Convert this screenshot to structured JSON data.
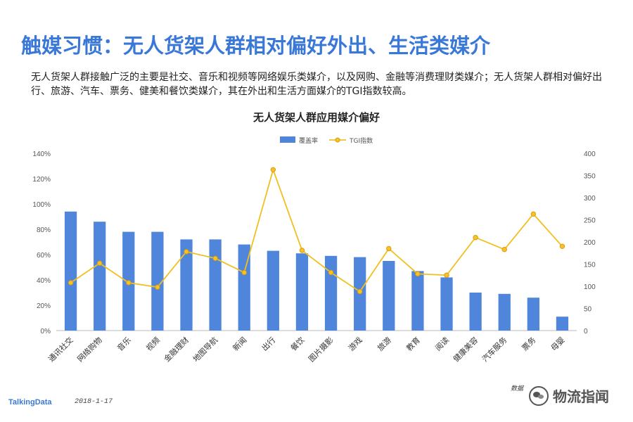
{
  "header": {
    "title": "触媒习惯：无人货架人群相对偏好外出、生活类媒介",
    "subtitle": "无人货架人群接触广泛的主要是社交、音乐和视频等网络娱乐类媒介，以及网购、金融等消费理财类媒介；无人货架人群相对偏好出行、旅游、汽车、票务、健美和餐饮类媒介，其在外出和生活方面媒介的TGI指数较高。"
  },
  "chart_data": {
    "type": "bar",
    "title": "无人货架人群应用媒介偏好",
    "categories": [
      "通讯社交",
      "网络购物",
      "音乐",
      "视频",
      "金融理财",
      "地图导航",
      "新闻",
      "出行",
      "餐饮",
      "图片摄影",
      "游戏",
      "旅游",
      "教育",
      "阅读",
      "健康美容",
      "汽车服务",
      "票务",
      "母婴"
    ],
    "series": [
      {
        "name": "覆盖率",
        "type": "bar",
        "axis": "left",
        "color": "#4f86dc",
        "values": [
          94,
          86,
          78,
          78,
          72,
          72,
          68,
          63,
          61,
          59,
          58,
          55,
          47,
          42,
          30,
          29,
          26,
          11
        ]
      },
      {
        "name": "TGI指数",
        "type": "line",
        "axis": "right",
        "color": "#f0c020",
        "values": [
          108,
          152,
          108,
          98,
          178,
          163,
          131,
          363,
          181,
          131,
          88,
          185,
          128,
          125,
          210,
          183,
          263,
          190
        ]
      }
    ],
    "y_left": {
      "min": 0,
      "max": 140,
      "ticks": [
        "0%",
        "20%",
        "40%",
        "60%",
        "80%",
        "100%",
        "120%",
        "140%"
      ]
    },
    "y_right": {
      "min": 0,
      "max": 400,
      "ticks": [
        "0",
        "50",
        "100",
        "150",
        "200",
        "250",
        "300",
        "350",
        "400"
      ]
    },
    "legend_position": "top-center",
    "grid": false
  },
  "footer": {
    "logo": "TalkingData",
    "date": "2018-1-17",
    "source": "数据",
    "watermark": "物流指闻"
  }
}
